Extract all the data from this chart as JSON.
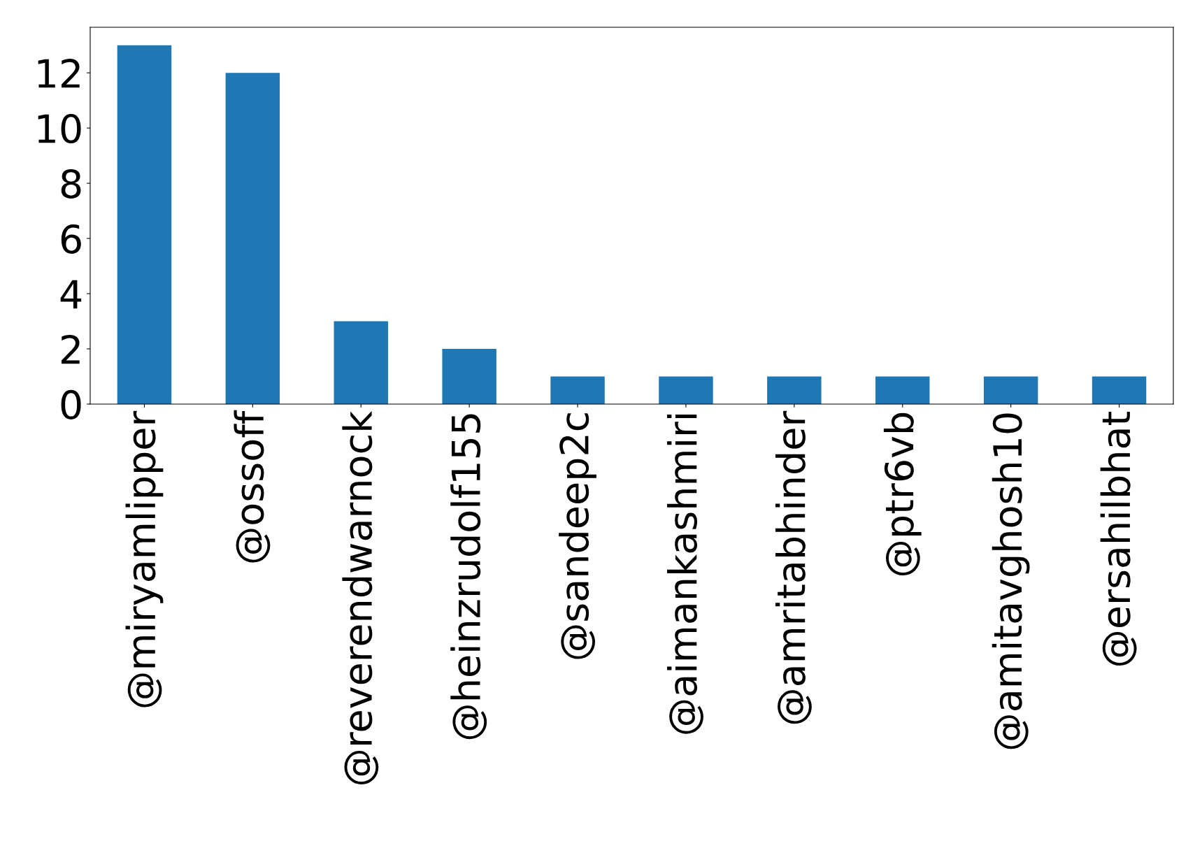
{
  "chart_data": {
    "type": "bar",
    "categories": [
      "@miryamlipper",
      "@ossoff",
      "@reverendwarnock",
      "@heinzrudolf155",
      "@sandeep2c",
      "@aimankashmiri",
      "@amritabhinder",
      "@ptr6vb",
      "@amitavghosh10",
      "@ersahilbhat"
    ],
    "values": [
      13,
      12,
      3,
      2,
      1,
      1,
      1,
      1,
      1,
      1
    ],
    "color": "#1f77b4",
    "ylim": [
      0,
      13.65
    ],
    "yticks": [
      0,
      2,
      4,
      6,
      8,
      10,
      12
    ],
    "grid": false
  }
}
